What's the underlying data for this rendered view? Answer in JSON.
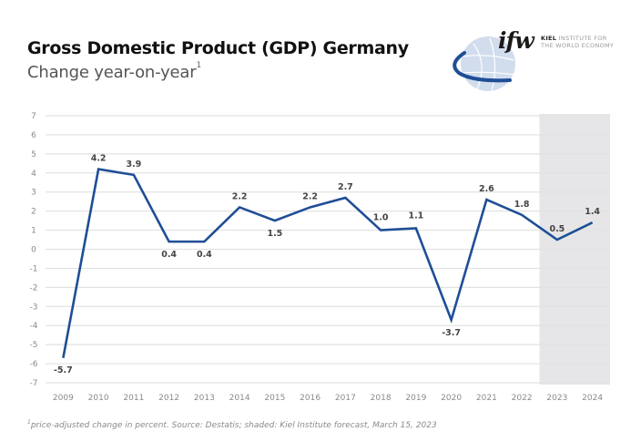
{
  "header": {
    "title": "Gross Domestic Product (GDP) Germany",
    "subtitle": "Change year-on-year",
    "subtitle_footnote_marker": "1"
  },
  "logo": {
    "icon": "globe-swoosh-icon",
    "wordmark": "ifw",
    "line1_bold": "KIEL",
    "line1_rest": "INSTITUTE FOR",
    "line2": "THE WORLD ECONOMY"
  },
  "footnote": {
    "marker": "1",
    "text": "price-adjusted change in percent. Source: Destatis; shaded: Kiel Institute forecast, March 15, 2023"
  },
  "colors": {
    "line": "#1f4e96",
    "forecast_shade": "#e6e6e8",
    "grid": "#e2e2e2"
  },
  "chart_data": {
    "type": "line",
    "title": "Gross Domestic Product (GDP) Germany",
    "subtitle": "Change year-on-year",
    "xlabel": "",
    "ylabel": "",
    "ylim": [
      -7,
      7
    ],
    "yticks": [
      7,
      6,
      5,
      4,
      3,
      2,
      1,
      0,
      -1,
      -2,
      -3,
      -4,
      -5,
      -6,
      -7
    ],
    "ytick_labels": [
      "7",
      "6",
      "5",
      "4",
      "3",
      "2",
      "1",
      "0",
      "-1",
      "-2",
      "-3",
      "-4",
      "-5",
      "-6",
      "-7"
    ],
    "grid": true,
    "legend": "none",
    "categories": [
      "2009",
      "2010",
      "2011",
      "2012",
      "2013",
      "2014",
      "2015",
      "2016",
      "2017",
      "2018",
      "2019",
      "2020",
      "2021",
      "2022",
      "2023",
      "2024"
    ],
    "series": [
      {
        "name": "GDP change year-on-year (%)",
        "values": [
          -5.7,
          4.2,
          3.9,
          0.4,
          0.4,
          2.2,
          1.5,
          2.2,
          2.7,
          1.0,
          1.1,
          -3.7,
          2.6,
          1.8,
          0.5,
          1.4
        ],
        "labels": [
          "-5.7",
          "4.2",
          "3.9",
          "0.4",
          "0.4",
          "2.2",
          "1.5",
          "2.2",
          "2.7",
          "1.0",
          "1.1",
          "-3.7",
          "2.6",
          "1.8",
          "0.5",
          "1.4"
        ],
        "label_position": [
          "below",
          "above",
          "above",
          "below",
          "below",
          "above",
          "below",
          "above",
          "above",
          "above",
          "above",
          "below",
          "above",
          "above",
          "above",
          "above"
        ]
      }
    ],
    "forecast_shaded_categories": [
      "2023",
      "2024"
    ]
  }
}
